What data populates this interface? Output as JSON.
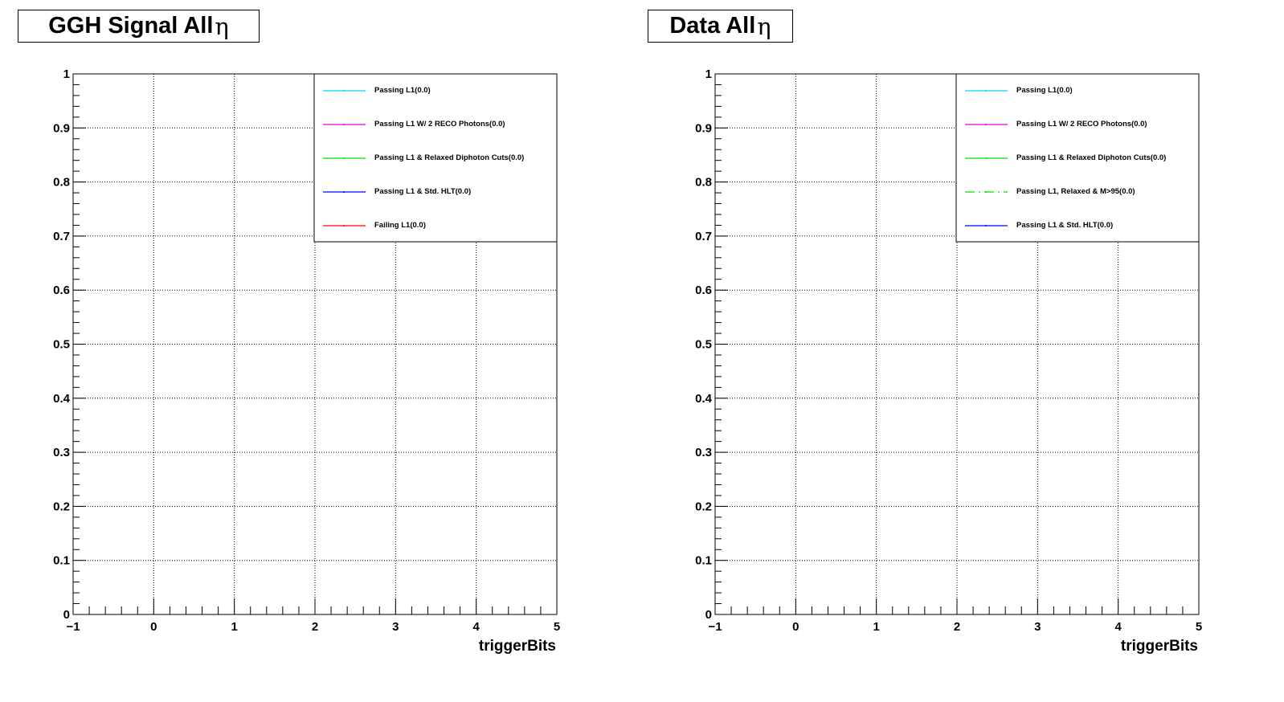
{
  "chart_data": [
    {
      "type": "line",
      "title": "GGH Signal All",
      "title_symbol": "η",
      "xlabel": "triggerBits",
      "ylabel": "",
      "xlim": [
        -1,
        5
      ],
      "ylim": [
        0,
        1
      ],
      "x_ticks": [
        "−1",
        "0",
        "1",
        "2",
        "3",
        "4",
        "5"
      ],
      "y_ticks": [
        "0",
        "0.1",
        "0.2",
        "0.3",
        "0.4",
        "0.5",
        "0.6",
        "0.7",
        "0.8",
        "0.9",
        "1"
      ],
      "grid": true,
      "legend_position": "top-right",
      "series": [
        {
          "name": "Passing L1(0.0)",
          "color": "#00d8e8",
          "dash": "solid",
          "values": []
        },
        {
          "name": "Passing L1 W/ 2 RECO Photons(0.0)",
          "color": "#e000e0",
          "dash": "solid",
          "values": []
        },
        {
          "name": "Passing L1 & Relaxed Diphoton Cuts(0.0)",
          "color": "#00e000",
          "dash": "solid",
          "values": []
        },
        {
          "name": "Passing L1 & Std. HLT(0.0)",
          "color": "#0000ff",
          "dash": "solid",
          "values": []
        },
        {
          "name": "Failing L1(0.0)",
          "color": "#ff0000",
          "dash": "solid",
          "values": []
        }
      ]
    },
    {
      "type": "line",
      "title": "Data All",
      "title_symbol": "η",
      "xlabel": "triggerBits",
      "ylabel": "",
      "xlim": [
        -1,
        5
      ],
      "ylim": [
        0,
        1
      ],
      "x_ticks": [
        "−1",
        "0",
        "1",
        "2",
        "3",
        "4",
        "5"
      ],
      "y_ticks": [
        "0",
        "0.1",
        "0.2",
        "0.3",
        "0.4",
        "0.5",
        "0.6",
        "0.7",
        "0.8",
        "0.9",
        "1"
      ],
      "grid": true,
      "legend_position": "top-right",
      "series": [
        {
          "name": "Passing L1(0.0)",
          "color": "#00d8e8",
          "dash": "solid",
          "values": []
        },
        {
          "name": "Passing L1 W/ 2 RECO Photons(0.0)",
          "color": "#e000e0",
          "dash": "solid",
          "values": []
        },
        {
          "name": "Passing L1 & Relaxed Diphoton Cuts(0.0)",
          "color": "#00e000",
          "dash": "solid",
          "values": []
        },
        {
          "name": "Passing L1, Relaxed & M>95(0.0)",
          "color": "#00e000",
          "dash": "dashdot",
          "values": []
        },
        {
          "name": "Passing L1 & Std. HLT(0.0)",
          "color": "#0000ff",
          "dash": "solid",
          "values": []
        }
      ]
    }
  ]
}
